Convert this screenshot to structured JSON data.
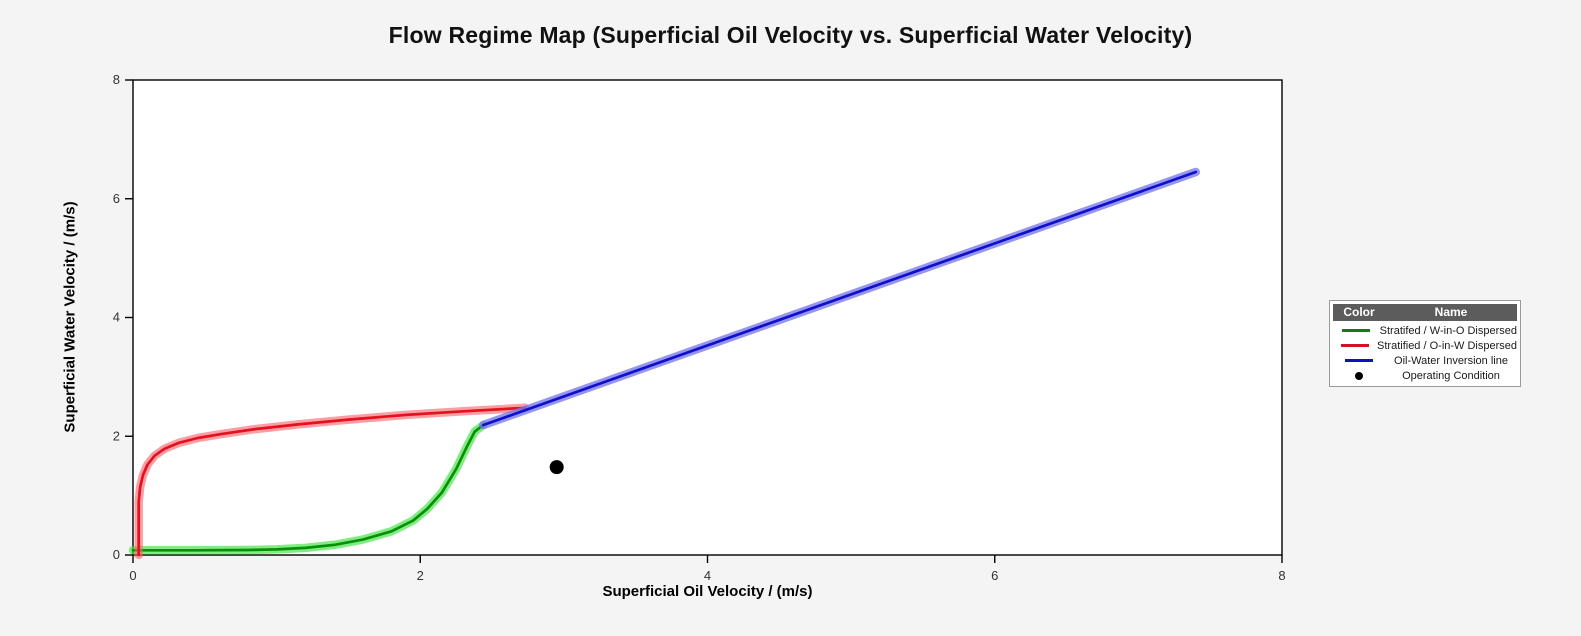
{
  "title": "Flow Regime Map (Superficial Oil Velocity vs. Superficial Water Velocity)",
  "chart_data": {
    "type": "line",
    "title": "Flow Regime Map (Superficial Oil Velocity vs. Superficial Water Velocity)",
    "xlabel": "Superficial Oil Velocity / (m/s)",
    "ylabel": "Superficial Water Velocity / (m/s)",
    "xlim": [
      0,
      8
    ],
    "ylim": [
      0,
      8
    ],
    "x_ticks": [
      0,
      2,
      4,
      6,
      8
    ],
    "y_ticks": [
      0,
      2,
      4,
      6,
      8
    ],
    "grid": false,
    "legend_position": "right-outside",
    "background": "#ffffff",
    "series": [
      {
        "id": "stratified-w-in-o-boundary",
        "name": "Stratifed / W-in-O Dispersed",
        "type": "line",
        "color": "#0a8f0a",
        "halo": "rgba(62,228,62,0.65)",
        "points": [
          [
            0,
            0.08
          ],
          [
            0.4,
            0.08
          ],
          [
            0.8,
            0.085
          ],
          [
            1.0,
            0.095
          ],
          [
            1.2,
            0.12
          ],
          [
            1.4,
            0.17
          ],
          [
            1.6,
            0.26
          ],
          [
            1.8,
            0.4
          ],
          [
            1.95,
            0.58
          ],
          [
            2.05,
            0.78
          ],
          [
            2.15,
            1.05
          ],
          [
            2.25,
            1.45
          ],
          [
            2.33,
            1.85
          ],
          [
            2.38,
            2.08
          ],
          [
            2.44,
            2.19
          ]
        ]
      },
      {
        "id": "stratified-o-in-w-boundary",
        "name": "Stratified / O-in-W Dispersed",
        "type": "line",
        "color": "#e6101f",
        "halo": "rgba(248,95,105,0.60)",
        "points": [
          [
            0.04,
            0.0
          ],
          [
            0.04,
            0.9
          ],
          [
            0.05,
            1.15
          ],
          [
            0.07,
            1.35
          ],
          [
            0.1,
            1.52
          ],
          [
            0.15,
            1.67
          ],
          [
            0.22,
            1.79
          ],
          [
            0.32,
            1.89
          ],
          [
            0.45,
            1.97
          ],
          [
            0.62,
            2.04
          ],
          [
            0.85,
            2.12
          ],
          [
            1.15,
            2.2
          ],
          [
            1.5,
            2.28
          ],
          [
            1.9,
            2.36
          ],
          [
            2.3,
            2.42
          ],
          [
            2.73,
            2.48
          ]
        ]
      },
      {
        "id": "oil-water-inversion-line",
        "name": "Oil-Water Inversion line",
        "type": "line",
        "color": "#1010cc",
        "halo": "rgba(115,115,232,0.75)",
        "points": [
          [
            2.44,
            2.19
          ],
          [
            7.4,
            6.45
          ]
        ]
      },
      {
        "id": "operating-condition",
        "name": "Operating Condition",
        "type": "point",
        "color": "#000000",
        "points": [
          [
            2.95,
            1.48
          ]
        ]
      }
    ]
  },
  "legend": {
    "header": {
      "color": "Color",
      "name": "Name"
    },
    "rows": [
      {
        "name": "Stratifed / W-in-O Dispersed",
        "swatch": "line",
        "color": "#187818"
      },
      {
        "name": "Stratified / O-in-W Dispersed",
        "swatch": "line",
        "color": "#d51020"
      },
      {
        "name": "Oil-Water Inversion line",
        "swatch": "line",
        "color": "#1111bb"
      },
      {
        "name": "Operating Condition",
        "swatch": "dot",
        "color": "#000000"
      }
    ]
  },
  "colors": {
    "page_background": "#f4f4f4",
    "plot_background": "#ffffff",
    "axis": "#000000",
    "tick_label": "#333333",
    "legend_header_bg": "#5c5c5c",
    "legend_header_text": "#ffffff"
  }
}
